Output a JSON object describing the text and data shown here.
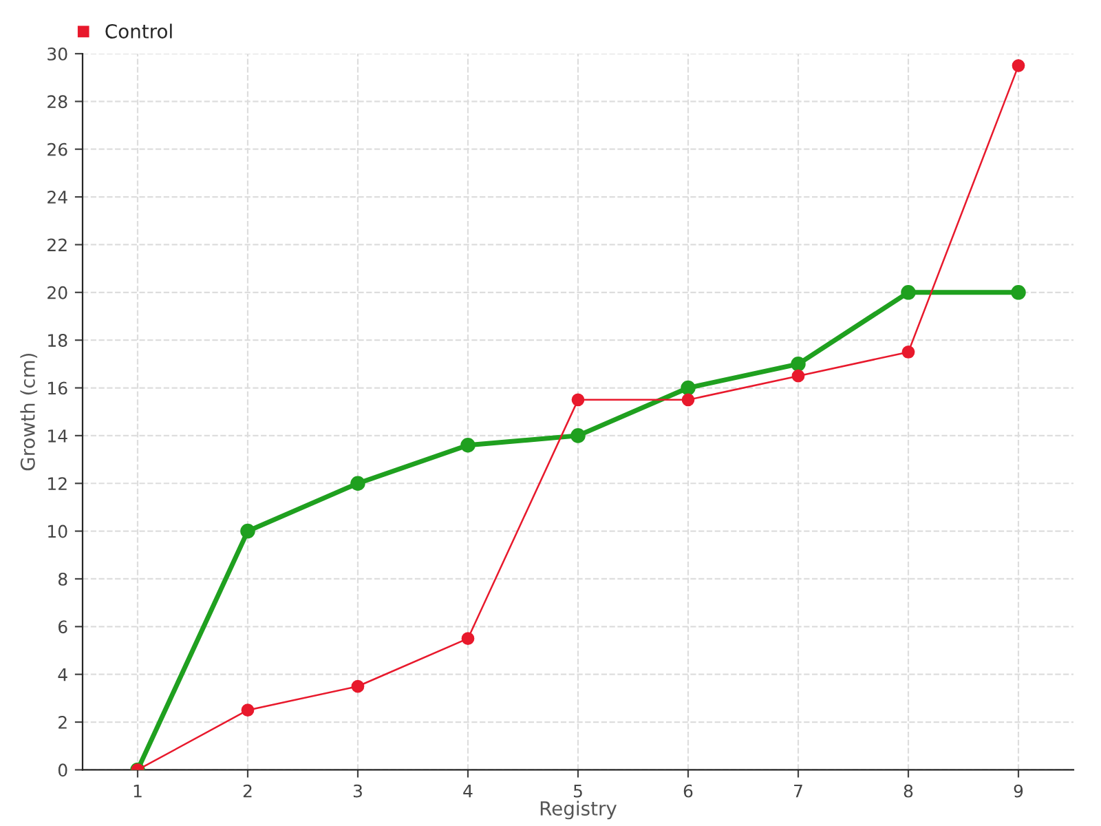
{
  "chart_data": {
    "type": "line",
    "xlabel": "Registry",
    "ylabel": "Growth (cm)",
    "x": [
      1,
      2,
      3,
      4,
      5,
      6,
      7,
      8,
      9
    ],
    "series": [
      {
        "color": "#1fa01f",
        "values": [
          0,
          10,
          12,
          13.6,
          14,
          16,
          17,
          20,
          20
        ]
      },
      {
        "name": "Control",
        "color": "#e8192c",
        "values": [
          0,
          2.5,
          3.5,
          5.5,
          15.5,
          15.5,
          16.5,
          17.5,
          29.5
        ]
      }
    ],
    "xlim": [
      0.5,
      9.5
    ],
    "xticks": [
      1,
      2,
      3,
      4,
      5,
      6,
      7,
      8,
      9
    ],
    "ylim": [
      0,
      30
    ],
    "yticks": [
      0,
      2,
      4,
      6,
      8,
      10,
      12,
      14,
      16,
      18,
      20,
      22,
      24,
      26,
      28,
      30
    ],
    "grid": true,
    "legend": "top left",
    "marker": "circle",
    "line_style": "solid"
  }
}
